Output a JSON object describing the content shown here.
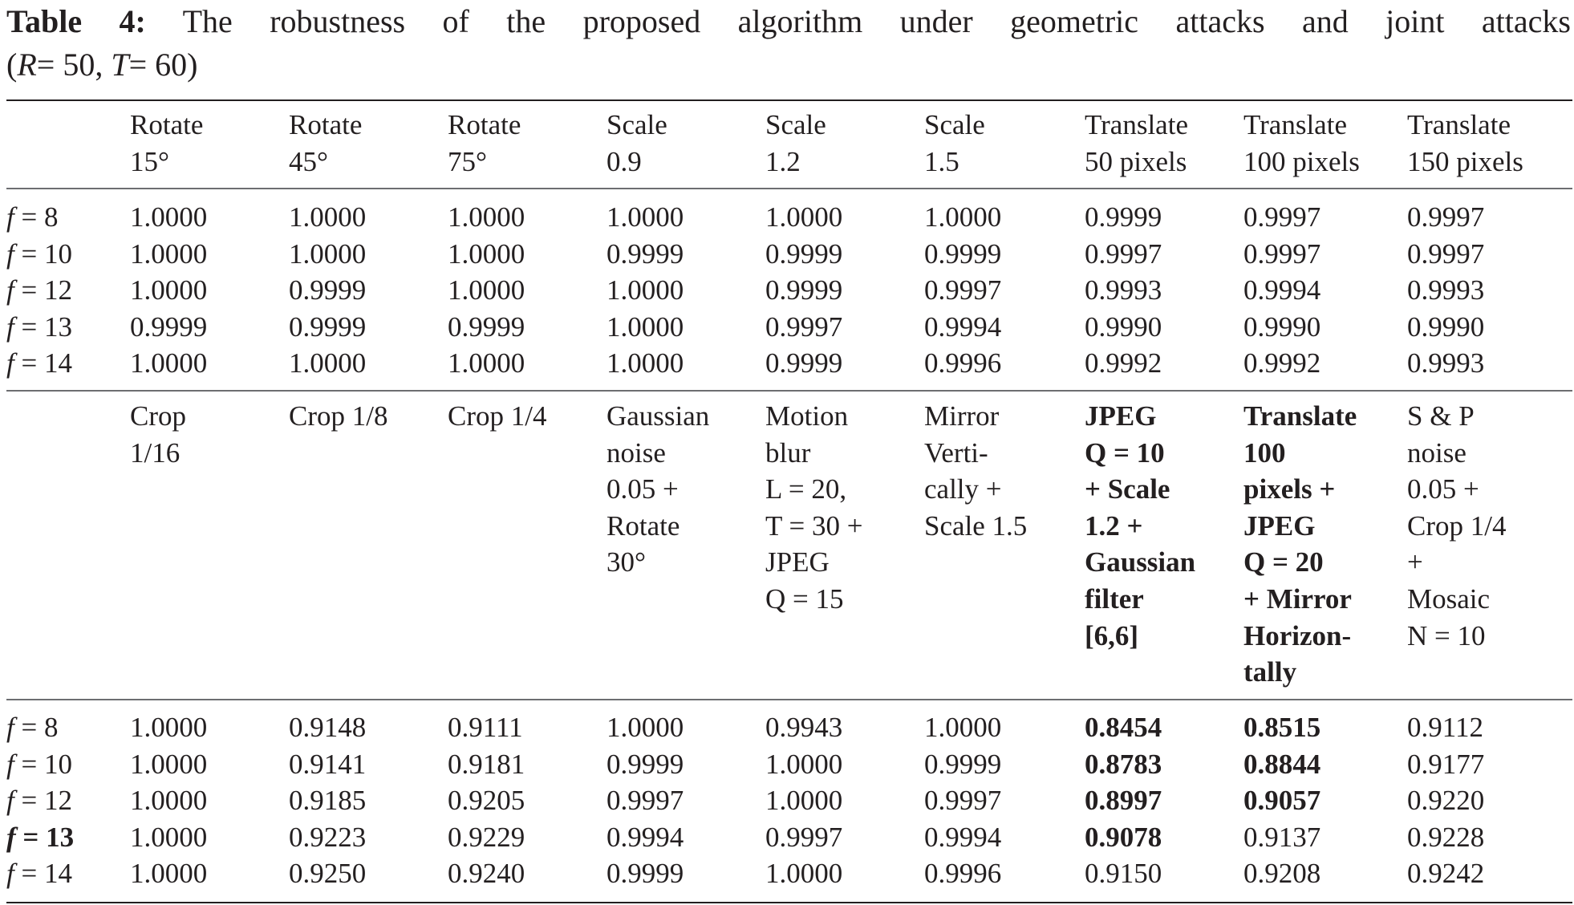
{
  "caption": {
    "label": "Table 4:",
    "text": "The robustness of the proposed algorithm under geometric attacks and joint attacks",
    "params": "(R = 50, T = 60)"
  },
  "table": {
    "section1": {
      "headers": [
        [
          "Rotate",
          "15°"
        ],
        [
          "Rotate",
          "45°"
        ],
        [
          "Rotate",
          "75°"
        ],
        [
          "Scale",
          "0.9"
        ],
        [
          "Scale",
          "1.2"
        ],
        [
          "Scale",
          "1.5"
        ],
        [
          "Translate",
          "50 pixels"
        ],
        [
          "Translate",
          "100 pixels"
        ],
        [
          "Translate",
          "150 pixels"
        ]
      ],
      "rows": [
        {
          "label": "f = 8",
          "values": [
            "1.0000",
            "1.0000",
            "1.0000",
            "1.0000",
            "1.0000",
            "1.0000",
            "0.9999",
            "0.9997",
            "0.9997"
          ]
        },
        {
          "label": "f = 10",
          "values": [
            "1.0000",
            "1.0000",
            "1.0000",
            "0.9999",
            "0.9999",
            "0.9999",
            "0.9997",
            "0.9997",
            "0.9997"
          ]
        },
        {
          "label": "f = 12",
          "values": [
            "1.0000",
            "0.9999",
            "1.0000",
            "1.0000",
            "0.9999",
            "0.9997",
            "0.9993",
            "0.9994",
            "0.9993"
          ]
        },
        {
          "label": "f = 13",
          "values": [
            "0.9999",
            "0.9999",
            "0.9999",
            "1.0000",
            "0.9997",
            "0.9994",
            "0.9990",
            "0.9990",
            "0.9990"
          ]
        },
        {
          "label": "f = 14",
          "values": [
            "1.0000",
            "1.0000",
            "1.0000",
            "1.0000",
            "0.9999",
            "0.9996",
            "0.9992",
            "0.9992",
            "0.9993"
          ]
        }
      ]
    },
    "section2": {
      "headers": [
        [
          "Crop",
          "1/16"
        ],
        [
          "Crop 1/8"
        ],
        [
          "Crop 1/4"
        ],
        [
          "Gaussian",
          "noise",
          "0.05 +",
          "Rotate",
          "30°"
        ],
        [
          "Motion",
          "blur",
          "L = 20,",
          "T = 30 +",
          "JPEG",
          "Q = 15"
        ],
        [
          "Mirror",
          "Verti-",
          "cally +",
          "Scale 1.5"
        ],
        [
          "JPEG",
          "Q = 10",
          "+ Scale",
          "1.2 +",
          "Gaussian",
          "filter",
          "[6,6]"
        ],
        [
          "Translate",
          "100",
          "pixels +",
          "JPEG",
          "Q = 20",
          "+ Mirror",
          "Horizon-",
          "tally"
        ],
        [
          "S & P",
          "noise",
          "0.05 +",
          "Crop 1/4",
          "+",
          "Mosaic",
          "N = 10"
        ]
      ],
      "rows": [
        {
          "label": "f = 8",
          "values": [
            "1.0000",
            "0.9148",
            "0.9111",
            "1.0000",
            "0.9943",
            "1.0000",
            "0.8454",
            "0.8515",
            "0.9112"
          ]
        },
        {
          "label": "f = 10",
          "values": [
            "1.0000",
            "0.9141",
            "0.9181",
            "0.9999",
            "1.0000",
            "0.9999",
            "0.8783",
            "0.8844",
            "0.9177"
          ]
        },
        {
          "label": "f = 12",
          "values": [
            "1.0000",
            "0.9185",
            "0.9205",
            "0.9997",
            "1.0000",
            "0.9997",
            "0.8997",
            "0.9057",
            "0.9220"
          ]
        },
        {
          "label": "f = 13",
          "values": [
            "1.0000",
            "0.9223",
            "0.9229",
            "0.9994",
            "0.9997",
            "0.9994",
            "0.9078",
            "0.9137",
            "0.9228"
          ]
        },
        {
          "label": "f = 14",
          "values": [
            "1.0000",
            "0.9250",
            "0.9240",
            "0.9999",
            "1.0000",
            "0.9996",
            "0.9150",
            "0.9208",
            "0.9242"
          ]
        }
      ]
    }
  }
}
